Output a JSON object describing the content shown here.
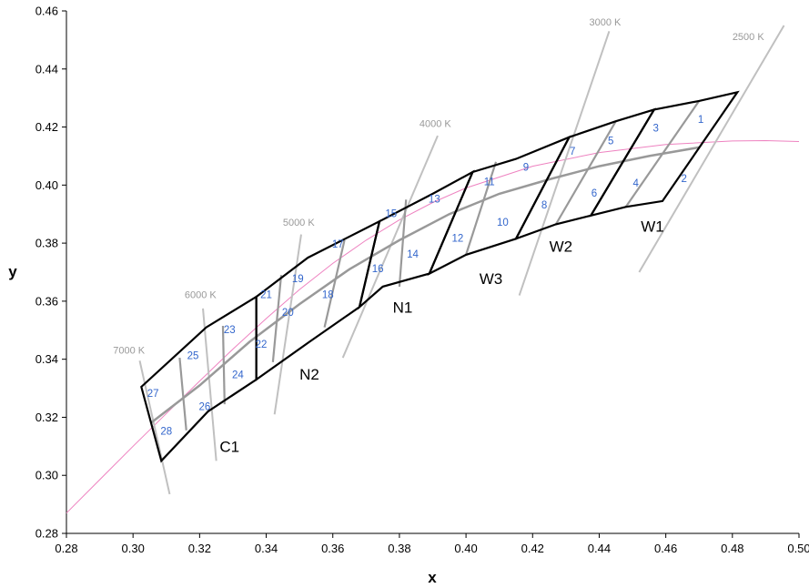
{
  "chart_data": {
    "type": "scatter",
    "xlabel": "x",
    "ylabel": "y",
    "xlim": [
      0.28,
      0.5
    ],
    "ylim": [
      0.28,
      0.46
    ],
    "x_ticks": [
      "0.28",
      "0.30",
      "0.32",
      "0.34",
      "0.36",
      "0.38",
      "0.40",
      "0.42",
      "0.44",
      "0.46",
      "0.48",
      "0.50"
    ],
    "y_ticks": [
      "0.28",
      "0.30",
      "0.32",
      "0.34",
      "0.36",
      "0.38",
      "0.40",
      "0.42",
      "0.44",
      "0.46"
    ],
    "grid": false,
    "colors": {
      "planckian": "#ee82c0",
      "isotherm": "#c0c0c0",
      "inner_grid": "#999999",
      "group_border": "#000000",
      "bin_label": "#3366cc",
      "cct_label": "#999999"
    },
    "planckian_locus": [
      [
        0.28,
        0.287
      ],
      [
        0.29,
        0.2985
      ],
      [
        0.3,
        0.31
      ],
      [
        0.31,
        0.3213
      ],
      [
        0.32,
        0.3325
      ],
      [
        0.33,
        0.3435
      ],
      [
        0.34,
        0.354
      ],
      [
        0.35,
        0.364
      ],
      [
        0.36,
        0.373
      ],
      [
        0.37,
        0.381
      ],
      [
        0.38,
        0.388
      ],
      [
        0.39,
        0.394
      ],
      [
        0.4,
        0.399
      ],
      [
        0.42,
        0.4065
      ],
      [
        0.44,
        0.4112
      ],
      [
        0.46,
        0.414
      ],
      [
        0.48,
        0.4152
      ],
      [
        0.49,
        0.4153
      ],
      [
        0.5,
        0.415
      ]
    ],
    "center_curve": [
      [
        0.3055,
        0.3182
      ],
      [
        0.32,
        0.331
      ],
      [
        0.335,
        0.346
      ],
      [
        0.35,
        0.359
      ],
      [
        0.365,
        0.371
      ],
      [
        0.38,
        0.381
      ],
      [
        0.395,
        0.39
      ],
      [
        0.41,
        0.397
      ],
      [
        0.425,
        0.402
      ],
      [
        0.44,
        0.4065
      ],
      [
        0.455,
        0.41
      ],
      [
        0.47,
        0.413
      ]
    ],
    "isotherms": [
      {
        "label": "7000 K",
        "from": [
          0.302,
          0.3395
        ],
        "to": [
          0.311,
          0.2935
        ]
      },
      {
        "label": "6000 K",
        "from": [
          0.321,
          0.3575
        ],
        "to": [
          0.325,
          0.305
        ]
      },
      {
        "label": "5000 K",
        "from": [
          0.3505,
          0.383
        ],
        "to": [
          0.3425,
          0.321
        ]
      },
      {
        "label": "4000 K",
        "from": [
          0.3915,
          0.417
        ],
        "to": [
          0.363,
          0.3405
        ]
      },
      {
        "label": "3000 K",
        "from": [
          0.443,
          0.453
        ],
        "to": [
          0.416,
          0.362
        ]
      },
      {
        "label": "2500 K",
        "from": [
          0.4955,
          0.455
        ],
        "to": [
          0.452,
          0.37
        ]
      }
    ],
    "cct_label_positions": [
      {
        "label": "7000 K",
        "at": [
          0.294,
          0.342
        ]
      },
      {
        "label": "6000 K",
        "at": [
          0.3155,
          0.361
        ]
      },
      {
        "label": "5000 K",
        "at": [
          0.345,
          0.386
        ]
      },
      {
        "label": "4000 K",
        "at": [
          0.386,
          0.42
        ]
      },
      {
        "label": "3000 K",
        "at": [
          0.437,
          0.455
        ]
      },
      {
        "label": "2500 K",
        "at": [
          0.48,
          0.45
        ]
      }
    ],
    "groups": [
      {
        "name": "C1",
        "polygon": [
          [
            0.3025,
            0.3305
          ],
          [
            0.322,
            0.351
          ],
          [
            0.337,
            0.3615
          ],
          [
            0.337,
            0.333
          ],
          [
            0.3225,
            0.322
          ],
          [
            0.3085,
            0.305
          ]
        ],
        "label_at": [
          0.326,
          0.308
        ]
      },
      {
        "name": "N2",
        "polygon": [
          [
            0.337,
            0.3615
          ],
          [
            0.3525,
            0.375
          ],
          [
            0.374,
            0.3875
          ],
          [
            0.368,
            0.358
          ],
          [
            0.353,
            0.346
          ],
          [
            0.337,
            0.333
          ]
        ],
        "label_at": [
          0.35,
          0.333
        ]
      },
      {
        "name": "N1",
        "polygon": [
          [
            0.374,
            0.3875
          ],
          [
            0.39,
            0.397
          ],
          [
            0.402,
            0.4045
          ],
          [
            0.389,
            0.3695
          ],
          [
            0.375,
            0.365
          ],
          [
            0.368,
            0.358
          ]
        ],
        "label_at": [
          0.378,
          0.356
        ]
      },
      {
        "name": "W3",
        "polygon": [
          [
            0.402,
            0.4045
          ],
          [
            0.415,
            0.409
          ],
          [
            0.431,
            0.4165
          ],
          [
            0.415,
            0.3815
          ],
          [
            0.4,
            0.376
          ],
          [
            0.389,
            0.3695
          ]
        ],
        "label_at": [
          0.404,
          0.366
        ]
      },
      {
        "name": "W2",
        "polygon": [
          [
            0.431,
            0.4165
          ],
          [
            0.445,
            0.422
          ],
          [
            0.4565,
            0.426
          ],
          [
            0.4375,
            0.3895
          ],
          [
            0.427,
            0.3865
          ],
          [
            0.415,
            0.3815
          ]
        ],
        "label_at": [
          0.425,
          0.377
        ]
      },
      {
        "name": "W1",
        "polygon": [
          [
            0.4565,
            0.426
          ],
          [
            0.47,
            0.429
          ],
          [
            0.4815,
            0.432
          ],
          [
            0.459,
            0.3945
          ],
          [
            0.448,
            0.3925
          ],
          [
            0.4375,
            0.3895
          ]
        ],
        "label_at": [
          0.4525,
          0.384
        ]
      }
    ],
    "inner_dividers": [
      [
        [
          0.314,
          0.3405
        ],
        [
          0.316,
          0.3155
        ]
      ],
      [
        [
          0.327,
          0.3515
        ],
        [
          0.3275,
          0.3245
        ]
      ],
      [
        [
          0.3445,
          0.369
        ],
        [
          0.342,
          0.339
        ]
      ],
      [
        [
          0.3635,
          0.381
        ],
        [
          0.3575,
          0.351
        ]
      ],
      [
        [
          0.382,
          0.395
        ],
        [
          0.38,
          0.365
        ]
      ],
      [
        [
          0.409,
          0.408
        ],
        [
          0.4,
          0.376
        ]
      ],
      [
        [
          0.445,
          0.422
        ],
        [
          0.427,
          0.3865
        ]
      ],
      [
        [
          0.47,
          0.429
        ],
        [
          0.448,
          0.3925
        ]
      ]
    ],
    "bins": [
      {
        "label": "1",
        "at": [
          0.4705,
          0.4215
        ]
      },
      {
        "label": "2",
        "at": [
          0.4655,
          0.401
        ]
      },
      {
        "label": "3",
        "at": [
          0.457,
          0.4185
        ]
      },
      {
        "label": "4",
        "at": [
          0.451,
          0.3995
        ]
      },
      {
        "label": "5",
        "at": [
          0.4435,
          0.414
        ]
      },
      {
        "label": "6",
        "at": [
          0.4385,
          0.396
        ]
      },
      {
        "label": "7",
        "at": [
          0.432,
          0.4105
        ]
      },
      {
        "label": "8",
        "at": [
          0.4235,
          0.392
        ]
      },
      {
        "label": "9",
        "at": [
          0.418,
          0.405
        ]
      },
      {
        "label": "10",
        "at": [
          0.411,
          0.386
        ]
      },
      {
        "label": "11",
        "at": [
          0.407,
          0.4
        ]
      },
      {
        "label": "12",
        "at": [
          0.3975,
          0.3805
        ]
      },
      {
        "label": "13",
        "at": [
          0.3905,
          0.394
        ]
      },
      {
        "label": "14",
        "at": [
          0.384,
          0.375
        ]
      },
      {
        "label": "15",
        "at": [
          0.3775,
          0.389
        ]
      },
      {
        "label": "16",
        "at": [
          0.3735,
          0.37
        ]
      },
      {
        "label": "17",
        "at": [
          0.3615,
          0.3785
        ]
      },
      {
        "label": "18",
        "at": [
          0.3585,
          0.361
        ]
      },
      {
        "label": "19",
        "at": [
          0.3495,
          0.3665
        ]
      },
      {
        "label": "20",
        "at": [
          0.3465,
          0.355
        ]
      },
      {
        "label": "21",
        "at": [
          0.34,
          0.361
        ]
      },
      {
        "label": "22",
        "at": [
          0.3385,
          0.344
        ]
      },
      {
        "label": "23",
        "at": [
          0.329,
          0.349
        ]
      },
      {
        "label": "24",
        "at": [
          0.3315,
          0.3335
        ]
      },
      {
        "label": "25",
        "at": [
          0.318,
          0.34
        ]
      },
      {
        "label": "26",
        "at": [
          0.3215,
          0.3225
        ]
      },
      {
        "label": "27",
        "at": [
          0.306,
          0.327
        ]
      },
      {
        "label": "28",
        "at": [
          0.31,
          0.314
        ]
      }
    ]
  }
}
